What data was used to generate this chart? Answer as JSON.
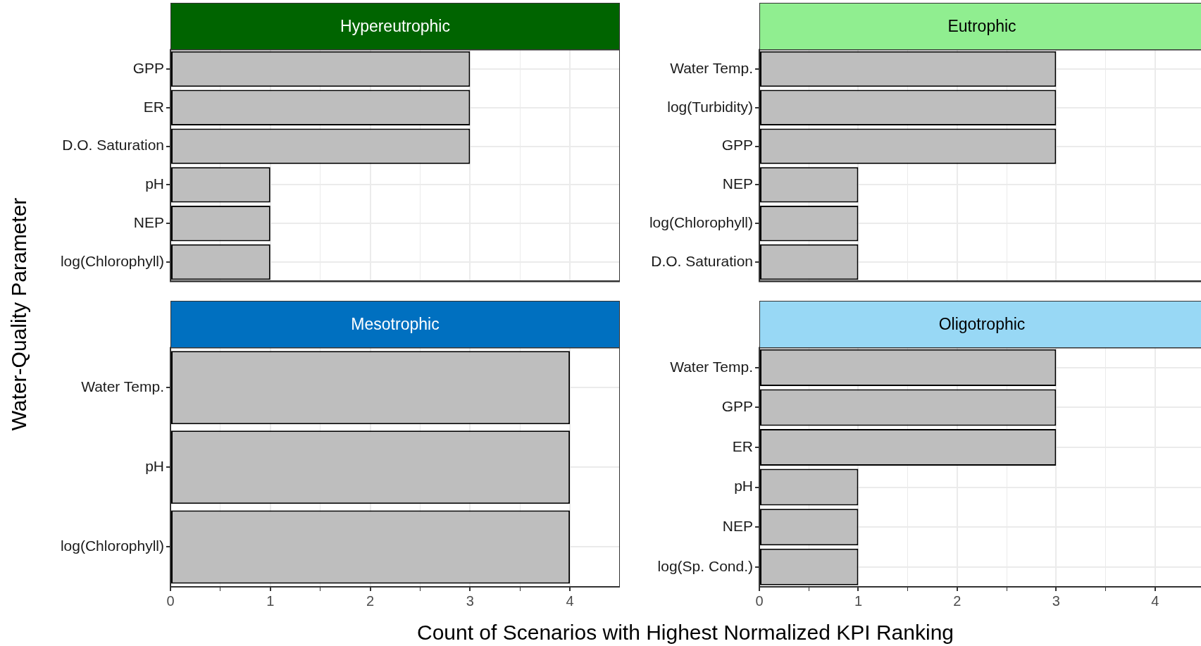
{
  "chart_data": [
    {
      "type": "bar",
      "orientation": "horizontal",
      "title": "Hypereutrophic",
      "ylabel": "Water-Quality Parameter",
      "categories": [
        "GPP",
        "ER",
        "D.O. Saturation",
        "pH",
        "NEP",
        "log(Chlorophyll)"
      ],
      "values": [
        3,
        3,
        3,
        1,
        1,
        1
      ],
      "color": "#bebebe",
      "xlim": [
        0,
        4.5
      ],
      "xticks": [
        0,
        {
          "value": 0.5,
          "label": null
        },
        1,
        {
          "value": 1.5,
          "label": null
        },
        2,
        {
          "value": 2.5,
          "label": null
        },
        3,
        {
          "value": 3.5,
          "label": null
        },
        4
      ],
      "grid": true,
      "legend": false,
      "tick_labels": "y"
    },
    {
      "type": "bar",
      "orientation": "horizontal",
      "title": "Eutrophic",
      "categories": [
        "Water Temp.",
        "log(Turbidity)",
        "GPP",
        "NEP",
        "log(Chlorophyll)",
        "D.O. Saturation"
      ],
      "values": [
        3,
        3,
        3,
        1,
        1,
        1
      ],
      "color": "#bebebe",
      "xlim": [
        0,
        4.5
      ],
      "xticks": [
        0,
        {
          "value": 0.5,
          "label": null
        },
        1,
        {
          "value": 1.5,
          "label": null
        },
        2,
        {
          "value": 2.5,
          "label": null
        },
        3,
        {
          "value": 3.5,
          "label": null
        },
        4
      ],
      "grid": true,
      "legend": false,
      "tick_labels": "y"
    },
    {
      "type": "bar",
      "orientation": "horizontal",
      "title": "Mesotrophic",
      "xlabel": "Count of Scenarios with Highest Normalized KPI Ranking",
      "categories": [
        "Water Temp.",
        "pH",
        "log(Chlorophyll)"
      ],
      "values": [
        4,
        4,
        4
      ],
      "color": "#bebebe",
      "xlim": [
        0,
        4.5
      ],
      "xticks": [
        0,
        {
          "value": 0.5,
          "label": null
        },
        1,
        {
          "value": 1.5,
          "label": null
        },
        2,
        {
          "value": 2.5,
          "label": null
        },
        3,
        {
          "value": 3.5,
          "label": null
        },
        4
      ],
      "grid": true,
      "legend": false
    },
    {
      "type": "bar",
      "orientation": "horizontal",
      "title": "Oligotrophic",
      "categories": [
        "Water Temp.",
        "GPP",
        "ER",
        "pH",
        "NEP",
        "log(Sp. Cond.)"
      ],
      "values": [
        3,
        3,
        3,
        1,
        1,
        1
      ],
      "color": "#bebebe",
      "xlim": [
        0,
        4.5
      ],
      "xticks": [
        0,
        {
          "value": 0.5,
          "label": null
        },
        1,
        {
          "value": 1.5,
          "label": null
        },
        2,
        {
          "value": 2.5,
          "label": null
        },
        3,
        {
          "value": 3.5,
          "label": null
        },
        4
      ],
      "grid": true,
      "legend": false
    }
  ]
}
